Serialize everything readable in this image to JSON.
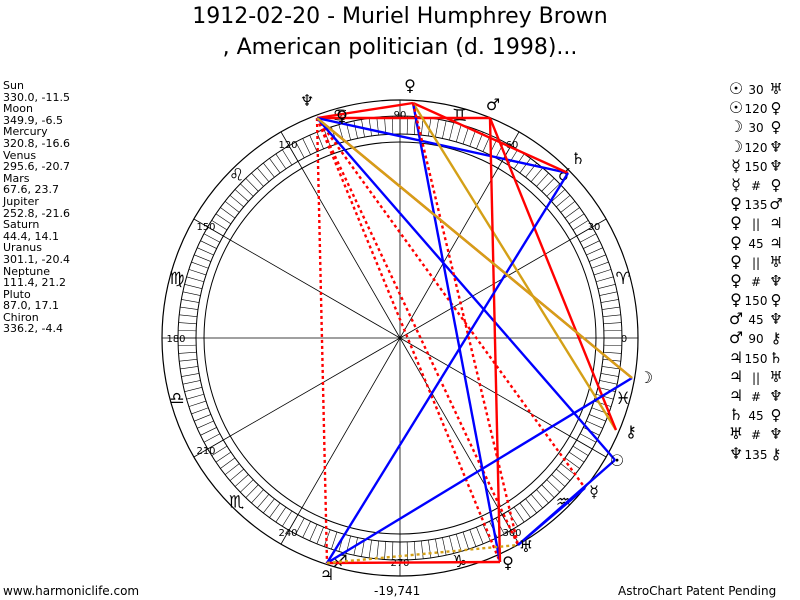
{
  "title_line1": "1912-02-20 - Muriel Humphrey Brown",
  "title_line2": ", American politician (d. 1998)...",
  "planets": [
    {
      "name": "Sun",
      "coords": "330.0, -11.5"
    },
    {
      "name": "Moon",
      "coords": "349.9, -6.5"
    },
    {
      "name": "Mercury",
      "coords": "320.8, -16.6"
    },
    {
      "name": "Venus",
      "coords": "295.6, -20.7"
    },
    {
      "name": "Mars",
      "coords": "67.6, 23.7"
    },
    {
      "name": "Jupiter",
      "coords": "252.8, -21.6"
    },
    {
      "name": "Saturn",
      "coords": "44.4, 14.1"
    },
    {
      "name": "Uranus",
      "coords": "301.1, -20.4"
    },
    {
      "name": "Neptune",
      "coords": "111.4, 21.2"
    },
    {
      "name": "Pluto",
      "coords": "87.0, 17.1"
    },
    {
      "name": "Chiron",
      "coords": "336.2, -4.4"
    }
  ],
  "aspects": [
    {
      "p1": "☉",
      "angle": "30",
      "p2": "♅"
    },
    {
      "p1": "☉",
      "angle": "120",
      "p2": "♀"
    },
    {
      "p1": "☽",
      "angle": "30",
      "p2": "♀"
    },
    {
      "p1": "☽",
      "angle": "120",
      "p2": "♆"
    },
    {
      "p1": "☿",
      "angle": "150",
      "p2": "♆"
    },
    {
      "p1": "☿",
      "angle": "#",
      "p2": "♀"
    },
    {
      "p1": "♀",
      "angle": "135",
      "p2": "♂"
    },
    {
      "p1": "♀",
      "angle": "||",
      "p2": "♃"
    },
    {
      "p1": "♀",
      "angle": "45",
      "p2": "♃"
    },
    {
      "p1": "♀",
      "angle": "||",
      "p2": "♅"
    },
    {
      "p1": "♀",
      "angle": "#",
      "p2": "♆"
    },
    {
      "p1": "♀",
      "angle": "150",
      "p2": "♀"
    },
    {
      "p1": "♂",
      "angle": "45",
      "p2": "♆"
    },
    {
      "p1": "♂",
      "angle": "90",
      "p2": "⚷"
    },
    {
      "p1": "♃",
      "angle": "150",
      "p2": "♄"
    },
    {
      "p1": "♃",
      "angle": "||",
      "p2": "♅"
    },
    {
      "p1": "♃",
      "angle": "#",
      "p2": "♆"
    },
    {
      "p1": "♄",
      "angle": "45",
      "p2": "♀"
    },
    {
      "p1": "♅",
      "angle": "#",
      "p2": "♆"
    },
    {
      "p1": "♆",
      "angle": "135",
      "p2": "⚷"
    }
  ],
  "wheel": {
    "degree_labels": [
      "0",
      "30",
      "60",
      "90",
      "120",
      "150",
      "180",
      "210",
      "240",
      "270",
      "300"
    ],
    "signs": [
      "♈",
      "♉",
      "♊",
      "♋",
      "♌",
      "♍",
      "♎",
      "♏",
      "♐",
      "♑",
      "♒",
      "♓"
    ],
    "planet_glyphs": {
      "sun": "☉",
      "moon": "☽",
      "mercury": "☿",
      "venus": "♀",
      "mars": "♂",
      "jupiter": "♃",
      "saturn": "♄",
      "uranus": "♅",
      "neptune": "♆",
      "pluto": "♀",
      "chiron": "⚷"
    },
    "colors": {
      "red": "#ff0000",
      "blue": "#0000ff",
      "gold": "#d4a017"
    }
  },
  "footer_left": "www.harmoniclife.com",
  "footer_center": "-19,741",
  "footer_right": "AstroChart Patent Pending"
}
